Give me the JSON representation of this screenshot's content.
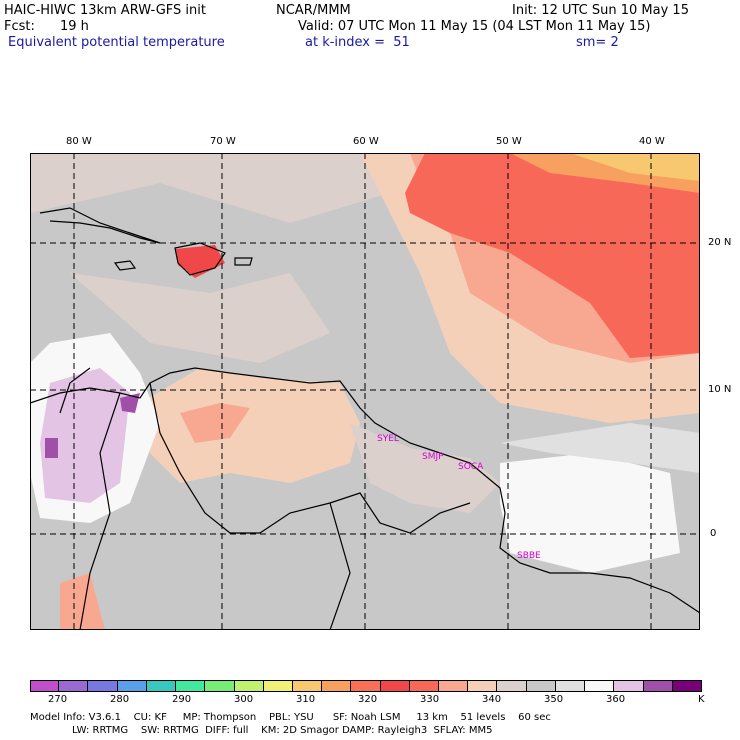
{
  "header": {
    "title": "HAIC-HIWC 13km ARW-GFS init",
    "center": "NCAR/MMM",
    "init": "Init: 12 UTC Sun 10 May 15",
    "fcst_label": "Fcst:",
    "fcst_value": "19 h",
    "valid": "Valid: 07 UTC Mon 11 May 15 (04 LST Mon 11 May 15)",
    "field": "Equivalent potential temperature",
    "level": "at k-index =  51",
    "smooth": "sm= 2"
  },
  "axes": {
    "lon_labels": [
      "80 W",
      "70 W",
      "60 W",
      "50 W",
      "40 W"
    ],
    "lat_labels": [
      "20 N",
      "10 N",
      "0"
    ]
  },
  "stations": [
    "SYEL",
    "SMJP",
    "SOCA",
    "SBBE"
  ],
  "colorbar": {
    "colors": [
      "#c050c8",
      "#9a6ad0",
      "#7878e0",
      "#5aa0e8",
      "#38c8c0",
      "#40e8a0",
      "#78ec78",
      "#c0f070",
      "#f0f078",
      "#f8c870",
      "#f8a060",
      "#f87058",
      "#f04848",
      "#f86858",
      "#f8a890",
      "#f4d0b8",
      "#dcd0cc",
      "#c8c8c8",
      "#e0e0e0",
      "#f8f8f8",
      "#e4c4e4",
      "#a050a8",
      "#780078"
    ],
    "labels": [
      "270",
      "280",
      "290",
      "300",
      "310",
      "320",
      "330",
      "340",
      "350",
      "360"
    ],
    "unit": "K"
  },
  "footer": {
    "line1": "Model Info: V3.6.1    CU: KF     MP: Thompson    PBL: YSU      SF: Noah LSM     13 km    51 levels    60 sec",
    "line2": "LW: RRTMG    SW: RRTMG  DIFF: full    KM: 2D Smagor DAMP: Rayleigh3  SFLAY: MM5"
  }
}
